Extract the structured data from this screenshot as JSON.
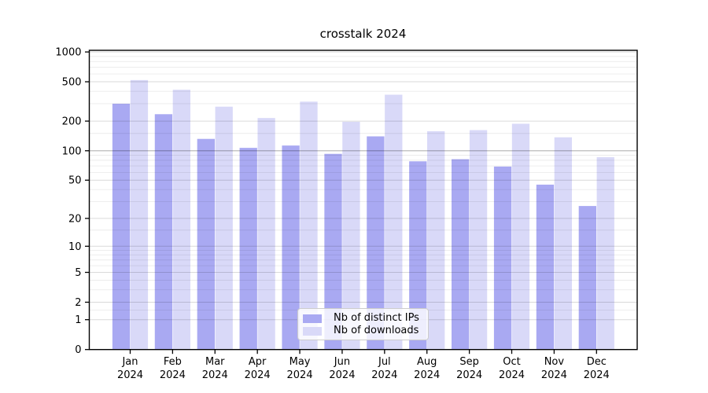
{
  "page": {
    "background": "#ffffff"
  },
  "chart_data": {
    "type": "bar",
    "title": "crosstalk 2024",
    "xlabel": "",
    "ylabel": "",
    "categories": [
      "Jan 2024",
      "Feb 2024",
      "Mar 2024",
      "Apr 2024",
      "May 2024",
      "Jun 2024",
      "Jul 2024",
      "Aug 2024",
      "Sep 2024",
      "Oct 2024",
      "Nov 2024",
      "Dec 2024"
    ],
    "series": [
      {
        "name": "Nb of distinct IPs",
        "color": "#a9a9f2",
        "values": [
          300,
          235,
          132,
          107,
          113,
          93,
          140,
          78,
          82,
          69,
          45,
          27
        ]
      },
      {
        "name": "Nb of downloads",
        "color": "#d9d9f8",
        "values": [
          520,
          415,
          280,
          215,
          315,
          197,
          370,
          158,
          162,
          188,
          137,
          86
        ]
      }
    ],
    "yscale": "log1p",
    "ylim": [
      0,
      1000
    ],
    "yticks": [
      0,
      1,
      2,
      5,
      10,
      20,
      50,
      100,
      200,
      500,
      1000
    ],
    "minor_yticks": [
      1.5,
      3,
      4,
      6,
      7,
      8,
      9,
      15,
      30,
      40,
      60,
      70,
      80,
      90,
      150,
      300,
      400,
      600,
      700,
      800,
      900
    ],
    "emphasized_gridline": 100,
    "grid": true,
    "legend_position": "lower center",
    "axis_color": "#000000",
    "background": "#ffffff"
  }
}
